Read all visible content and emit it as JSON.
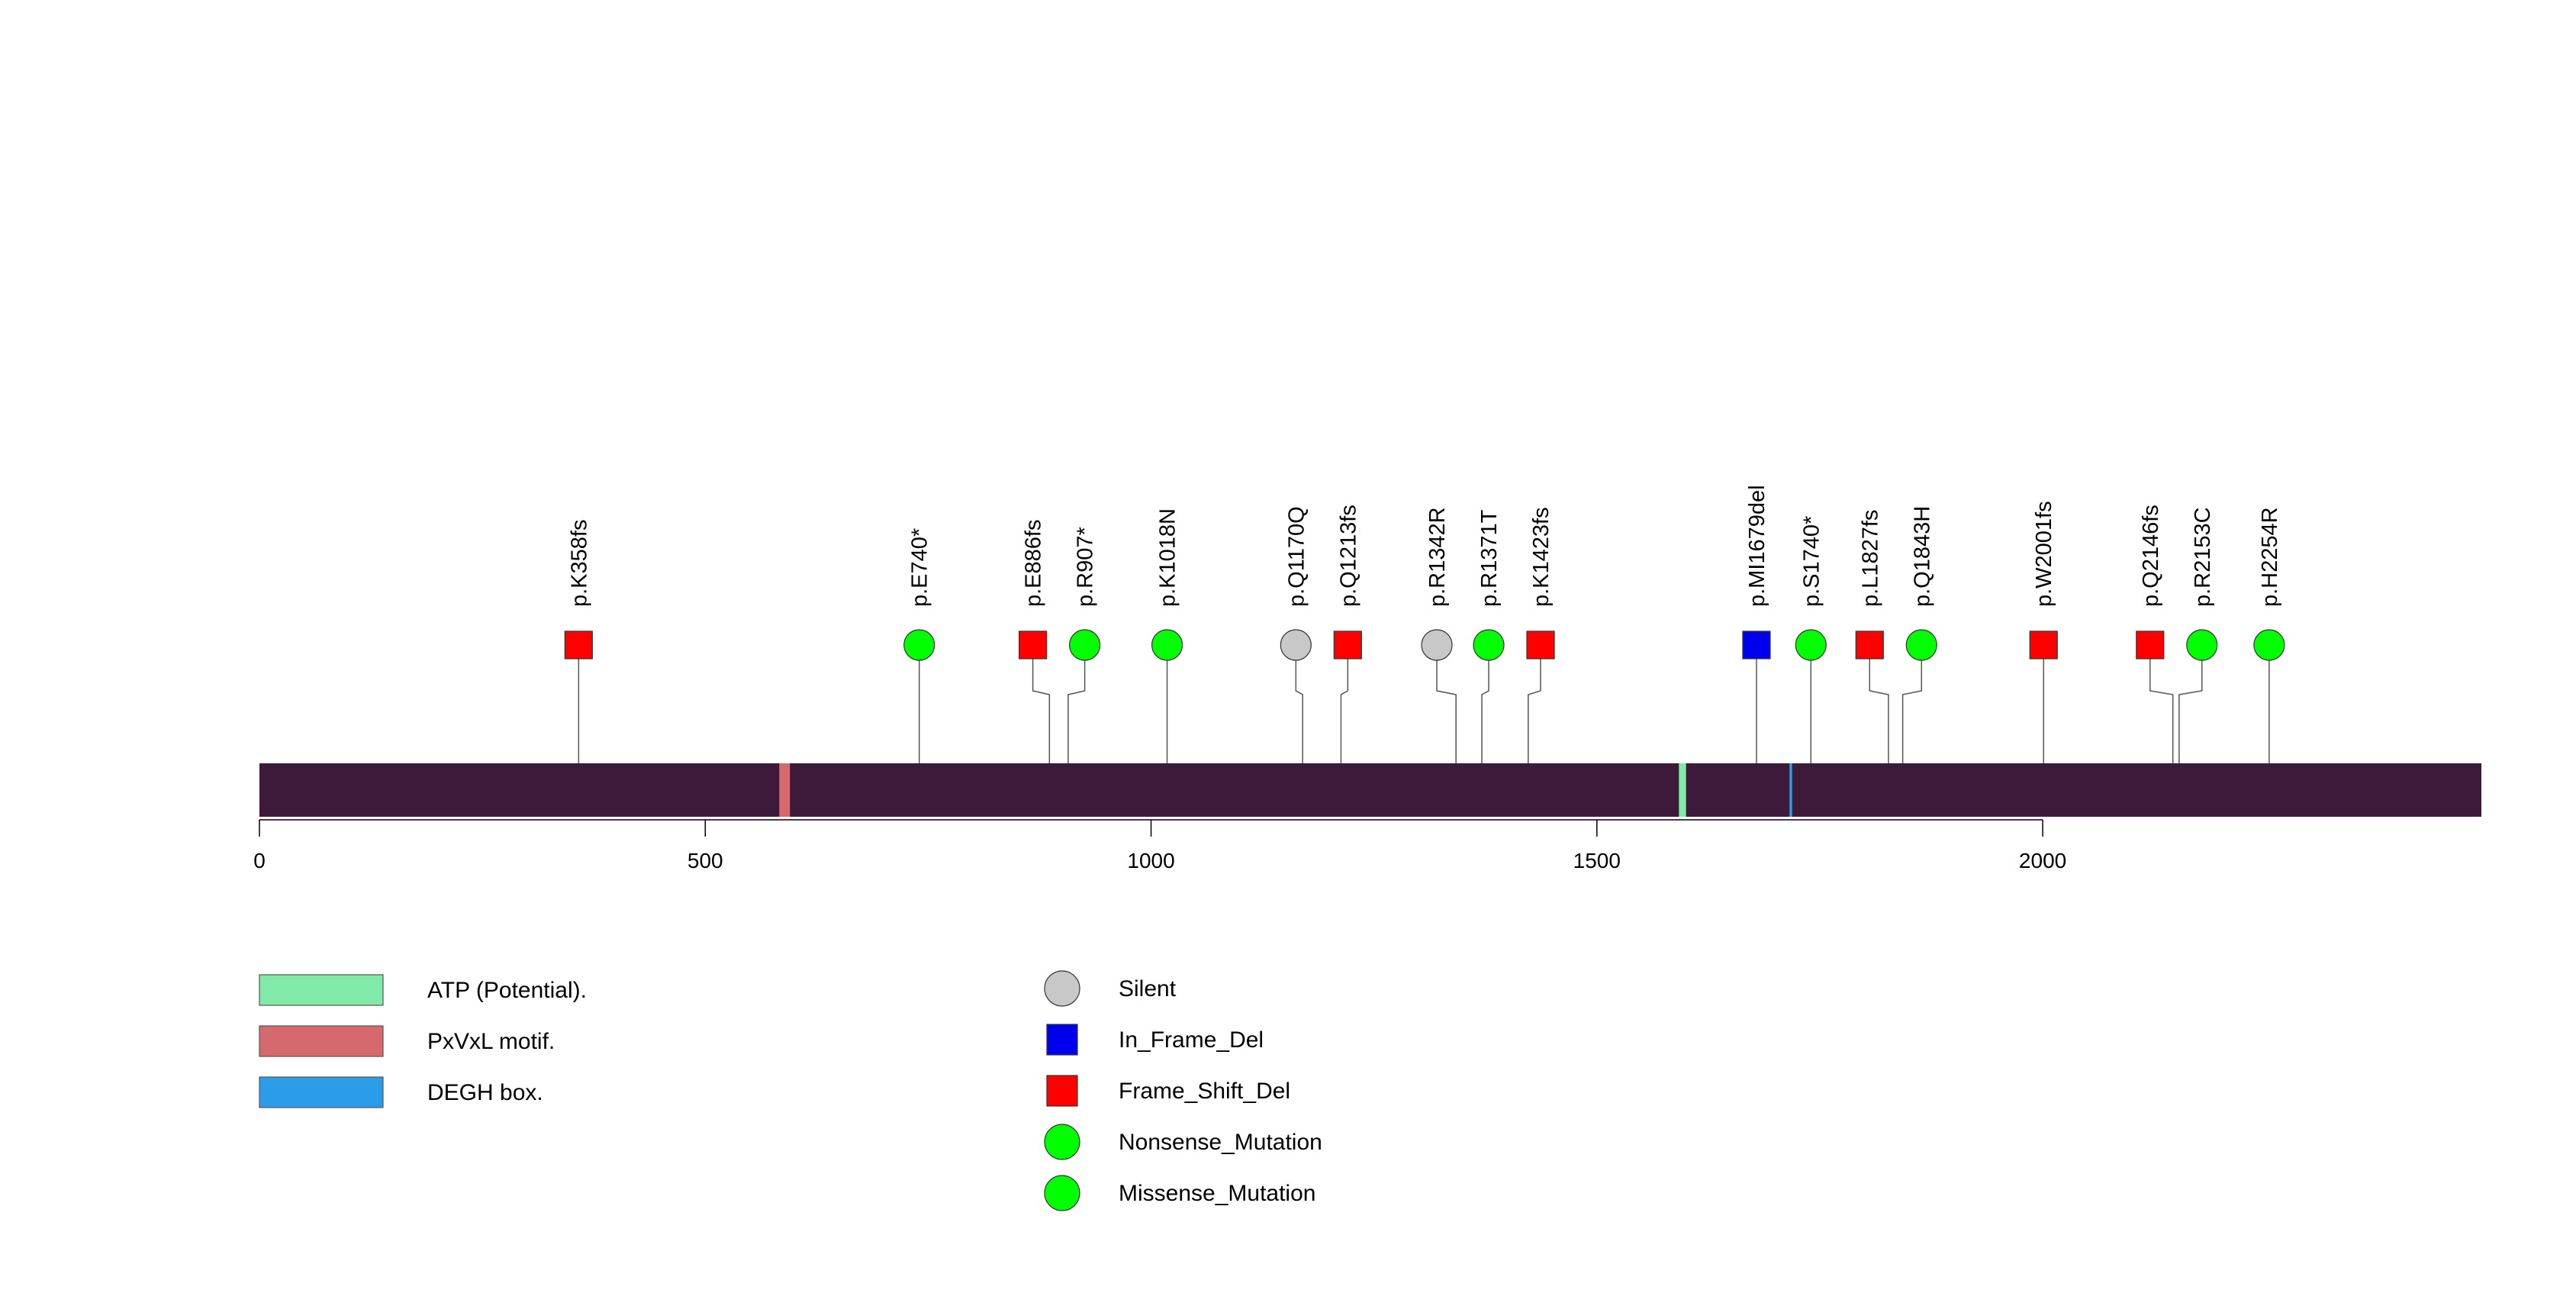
{
  "chart_data": {
    "type": "lollipop",
    "xlim": [
      0,
      2492
    ],
    "x_ticks": [
      0,
      500,
      1000,
      1500,
      2000
    ],
    "protein_length": 2492,
    "protein_color": "#3d1a39",
    "domains": [
      {
        "name": "PxVxL motif.",
        "start": 583,
        "end": 595,
        "color": "#d6696b"
      },
      {
        "name": "ATP (Potential).",
        "start": 1592,
        "end": 1600,
        "color": "#82eaa8"
      },
      {
        "name": "DEGH box.",
        "start": 1716,
        "end": 1719,
        "color": "#2a9ce8"
      }
    ],
    "mutations": [
      {
        "label": "p.K358fs",
        "position": 358,
        "type": "Frame_Shift_Del"
      },
      {
        "label": "p.E740*",
        "position": 740,
        "type": "Nonsense_Mutation"
      },
      {
        "label": "p.E886fs",
        "position": 886,
        "type": "Frame_Shift_Del"
      },
      {
        "label": "p.R907*",
        "position": 907,
        "type": "Nonsense_Mutation"
      },
      {
        "label": "p.K1018N",
        "position": 1018,
        "type": "Missense_Mutation"
      },
      {
        "label": "p.Q1170Q",
        "position": 1170,
        "type": "Silent"
      },
      {
        "label": "p.Q1213fs",
        "position": 1213,
        "type": "Frame_Shift_Del"
      },
      {
        "label": "p.R1342R",
        "position": 1342,
        "type": "Silent"
      },
      {
        "label": "p.R1371T",
        "position": 1371,
        "type": "Missense_Mutation"
      },
      {
        "label": "p.K1423fs",
        "position": 1423,
        "type": "Frame_Shift_Del"
      },
      {
        "label": "p.MI1679del",
        "position": 1679,
        "type": "In_Frame_Del"
      },
      {
        "label": "p.S1740*",
        "position": 1740,
        "type": "Nonsense_Mutation"
      },
      {
        "label": "p.L1827fs",
        "position": 1827,
        "type": "Frame_Shift_Del"
      },
      {
        "label": "p.Q1843H",
        "position": 1843,
        "type": "Missense_Mutation"
      },
      {
        "label": "p.W2001fs",
        "position": 2001,
        "type": "Frame_Shift_Del"
      },
      {
        "label": "p.Q2146fs",
        "position": 2146,
        "type": "Frame_Shift_Del"
      },
      {
        "label": "p.R2153C",
        "position": 2153,
        "type": "Missense_Mutation"
      },
      {
        "label": "p.H2254R",
        "position": 2254,
        "type": "Missense_Mutation"
      }
    ],
    "mutation_styles": {
      "Silent": {
        "shape": "circle",
        "color": "#c8c8c8"
      },
      "In_Frame_Del": {
        "shape": "square",
        "color": "#0000ee"
      },
      "Frame_Shift_Del": {
        "shape": "square",
        "color": "#ff0000"
      },
      "Nonsense_Mutation": {
        "shape": "circle",
        "color": "#00ff00"
      },
      "Missense_Mutation": {
        "shape": "circle",
        "color": "#00ff00"
      }
    },
    "domain_legend": [
      {
        "label": "ATP (Potential).",
        "color": "#82eaa8"
      },
      {
        "label": "PxVxL motif.",
        "color": "#d6696b"
      },
      {
        "label": "DEGH box.",
        "color": "#2a9ce8"
      }
    ],
    "mutation_legend": [
      {
        "label": "Silent",
        "shape": "circle",
        "color": "#c8c8c8"
      },
      {
        "label": "In_Frame_Del",
        "shape": "square",
        "color": "#0000ee"
      },
      {
        "label": "Frame_Shift_Del",
        "shape": "square",
        "color": "#ff0000"
      },
      {
        "label": "Nonsense_Mutation",
        "shape": "circle",
        "color": "#00ff00"
      },
      {
        "label": "Missense_Mutation",
        "shape": "circle",
        "color": "#00ff00"
      }
    ]
  }
}
